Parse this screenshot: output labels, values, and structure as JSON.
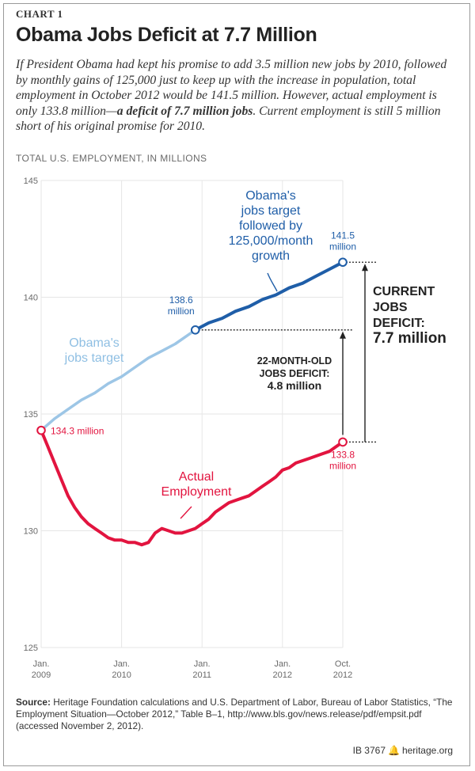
{
  "header": {
    "kicker": "CHART 1",
    "title": "Obama Jobs Deficit at 7.7 Million",
    "intro_part1": "If President Obama had kept his promise to add 3.5 million new jobs by 2010, followed by monthly gains of 125,000 just to keep up with the increase in population, total employment in October 2012 would be 141.5 million. However, actual employment is only 133.8 million—",
    "intro_bold": "a deficit of 7.7 million jobs",
    "intro_part2": ". Current employment is still 5 million short of his original promise for 2010."
  },
  "chart_data": {
    "type": "line",
    "ylabel": "TOTAL U.S. EMPLOYMENT, IN MILLIONS",
    "ylim": [
      125,
      145
    ],
    "yticks": [
      125,
      130,
      135,
      140,
      145
    ],
    "xlim": [
      0,
      45
    ],
    "xticks": [
      {
        "x": 0,
        "line1": "Jan.",
        "line2": "2009"
      },
      {
        "x": 12,
        "line1": "Jan.",
        "line2": "2010"
      },
      {
        "x": 24,
        "line1": "Jan.",
        "line2": "2011"
      },
      {
        "x": 36,
        "line1": "Jan.",
        "line2": "2012"
      },
      {
        "x": 45,
        "line1": "Oct.",
        "line2": "2012"
      }
    ],
    "series": [
      {
        "name": "Obama's jobs target",
        "color": "#9dc6e6",
        "x": [
          0,
          2,
          4,
          6,
          8,
          10,
          12,
          14,
          16,
          18,
          20,
          22,
          23
        ],
        "y": [
          134.3,
          134.8,
          135.2,
          135.6,
          135.9,
          136.3,
          136.6,
          137.0,
          137.4,
          137.7,
          138.0,
          138.4,
          138.6
        ]
      },
      {
        "name": "Obama's jobs target followed by 125,000/month growth",
        "color": "#1f5ea8",
        "x": [
          23,
          25,
          27,
          29,
          31,
          33,
          35,
          37,
          39,
          41,
          43,
          45
        ],
        "y": [
          138.6,
          138.9,
          139.1,
          139.4,
          139.6,
          139.9,
          140.1,
          140.4,
          140.6,
          140.9,
          141.2,
          141.5
        ]
      },
      {
        "name": "Actual Employment",
        "color": "#e2143f",
        "x": [
          0,
          1,
          2,
          3,
          4,
          5,
          6,
          7,
          8,
          9,
          10,
          11,
          12,
          13,
          14,
          15,
          16,
          17,
          18,
          19,
          20,
          21,
          22,
          23,
          24,
          25,
          26,
          27,
          28,
          29,
          30,
          31,
          32,
          33,
          34,
          35,
          36,
          37,
          38,
          39,
          40,
          41,
          42,
          43,
          44,
          45
        ],
        "y": [
          134.3,
          133.6,
          132.9,
          132.2,
          131.5,
          131.0,
          130.6,
          130.3,
          130.1,
          129.9,
          129.7,
          129.6,
          129.6,
          129.5,
          129.5,
          129.4,
          129.5,
          129.9,
          130.1,
          130.0,
          129.9,
          129.9,
          130.0,
          130.1,
          130.3,
          130.5,
          130.8,
          131.0,
          131.2,
          131.3,
          131.4,
          131.5,
          131.7,
          131.9,
          132.1,
          132.3,
          132.6,
          132.7,
          132.9,
          133.0,
          133.1,
          133.2,
          133.3,
          133.4,
          133.6,
          133.8
        ]
      }
    ],
    "points": [
      {
        "name": "start-point",
        "x": 0,
        "y": 134.3,
        "color": "#e2143f",
        "label": "134.3 million"
      },
      {
        "name": "target-2010-point",
        "x": 23,
        "y": 138.6,
        "color": "#1f5ea8",
        "label_line1": "138.6",
        "label_line2": "million"
      },
      {
        "name": "target-end-point",
        "x": 45,
        "y": 141.5,
        "color": "#1f5ea8",
        "label_line1": "141.5",
        "label_line2": "million"
      },
      {
        "name": "actual-end-point",
        "x": 45,
        "y": 133.8,
        "color": "#e2143f",
        "label_line1": "133.8",
        "label_line2": "million"
      }
    ],
    "annotations": {
      "light_target": [
        "Obama's",
        "jobs target"
      ],
      "dark_target": [
        "Obama's",
        "jobs target",
        "followed by",
        "125,000/month",
        "growth"
      ],
      "actual": [
        "Actual",
        "Employment"
      ],
      "deficit_22": [
        "22-MONTH-OLD",
        "JOBS DEFICIT:",
        "4.8 million"
      ],
      "deficit_current": [
        "CURRENT",
        "JOBS",
        "DEFICIT:",
        "7.7 million"
      ]
    }
  },
  "source": {
    "label": "Source:",
    "text": "Heritage Foundation calculations and U.S. Department of Labor, Bureau of Labor Statistics, “The Employment Situation—October 2012,” Table B–1, http://www.bls.gov/news.release/pdf/empsit.pdf (accessed November 2, 2012)."
  },
  "footer": {
    "id": "IB 3767",
    "bell": "🔔",
    "site": "heritage.org"
  }
}
